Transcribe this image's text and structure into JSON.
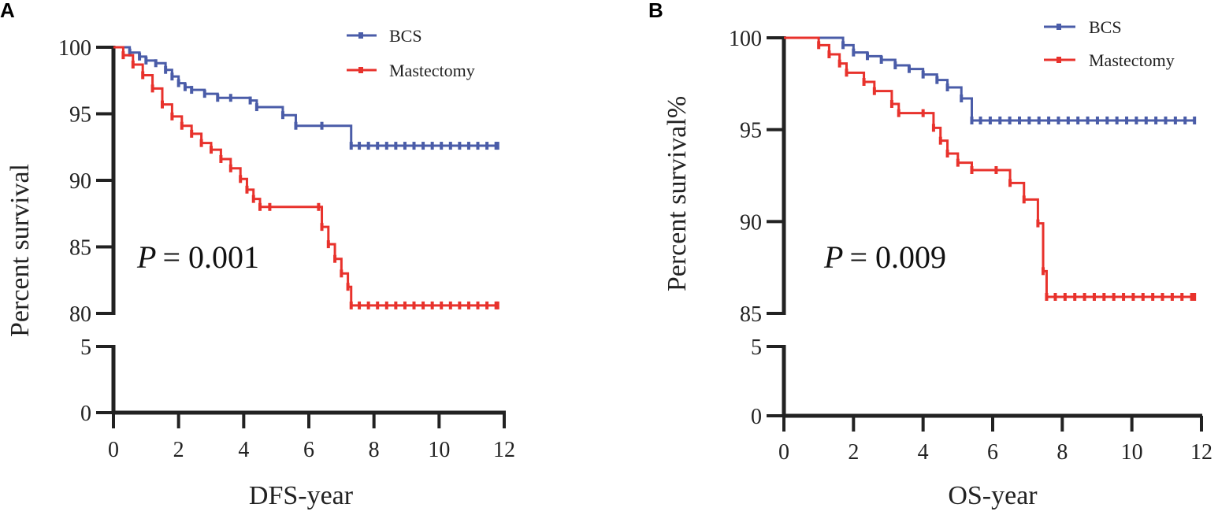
{
  "colors": {
    "bcs": "#4A5CA8",
    "mastectomy": "#E8322C",
    "axis": "#222222"
  },
  "chart_data": [
    {
      "type": "line",
      "panel_label": "A",
      "xlabel": "DFS-year",
      "ylabel": "Percent survival",
      "xlim": [
        0,
        12
      ],
      "xticks": [
        0,
        2,
        4,
        6,
        8,
        10,
        12
      ],
      "ylim_upper": [
        80,
        100
      ],
      "yticks_upper": [
        80,
        85,
        90,
        95,
        100
      ],
      "ylim_lower": [
        0,
        5
      ],
      "yticks_lower": [
        0,
        5
      ],
      "p_label": "P",
      "p_value": "= 0.001",
      "series": [
        {
          "name": "BCS",
          "x": [
            0,
            0.5,
            0.8,
            1.0,
            1.3,
            1.6,
            1.8,
            2.0,
            2.2,
            2.4,
            2.8,
            3.2,
            3.6,
            4.2,
            4.4,
            5.2,
            5.6,
            6.4,
            7.3,
            11.8
          ],
          "y": [
            100,
            99.6,
            99.3,
            99.0,
            98.8,
            98.3,
            97.8,
            97.3,
            97.0,
            96.8,
            96.5,
            96.2,
            96.2,
            96.0,
            95.5,
            94.9,
            94.1,
            94.1,
            92.6,
            92.6
          ]
        },
        {
          "name": "Mastectomy",
          "x": [
            0,
            0.3,
            0.6,
            0.9,
            1.2,
            1.5,
            1.8,
            2.1,
            2.4,
            2.7,
            3.0,
            3.3,
            3.6,
            3.9,
            4.1,
            4.3,
            4.5,
            4.8,
            6.3,
            6.4,
            6.6,
            6.8,
            7.0,
            7.2,
            7.3,
            11.8
          ],
          "y": [
            100,
            99.4,
            98.7,
            97.9,
            96.9,
            95.7,
            94.8,
            94.1,
            93.5,
            92.8,
            92.3,
            91.6,
            90.9,
            90.1,
            89.3,
            88.6,
            88.0,
            88.0,
            88.0,
            86.5,
            85.2,
            84.1,
            83.0,
            82.0,
            80.6,
            80.6
          ]
        }
      ]
    },
    {
      "type": "line",
      "panel_label": "B",
      "xlabel": "OS-year",
      "ylabel": "Percent survival%",
      "xlim": [
        0,
        12
      ],
      "xticks": [
        0,
        2,
        4,
        6,
        8,
        10,
        12
      ],
      "ylim_upper": [
        85,
        100
      ],
      "yticks_upper": [
        85,
        90,
        95,
        100
      ],
      "ylim_lower": [
        0,
        5
      ],
      "yticks_lower": [
        0,
        5
      ],
      "p_label": "P",
      "p_value": "= 0.009",
      "series": [
        {
          "name": "BCS",
          "x": [
            0,
            1.7,
            2.0,
            2.4,
            2.8,
            3.2,
            3.6,
            4.0,
            4.4,
            4.7,
            5.1,
            5.4,
            11.8
          ],
          "y": [
            100,
            99.6,
            99.2,
            99.0,
            98.8,
            98.5,
            98.3,
            98.0,
            97.7,
            97.3,
            96.7,
            95.5,
            95.5
          ]
        },
        {
          "name": "Mastectomy",
          "x": [
            0,
            1.0,
            1.3,
            1.6,
            1.8,
            2.3,
            2.6,
            3.1,
            3.3,
            4.0,
            4.3,
            4.5,
            4.7,
            5.0,
            5.4,
            6.1,
            6.5,
            6.9,
            7.3,
            7.45,
            7.55,
            11.8
          ],
          "y": [
            100,
            99.6,
            99.1,
            98.6,
            98.1,
            97.6,
            97.1,
            96.4,
            95.9,
            95.9,
            95.1,
            94.4,
            93.7,
            93.2,
            92.8,
            92.8,
            92.1,
            91.2,
            89.9,
            87.3,
            85.9,
            85.9
          ]
        }
      ]
    }
  ]
}
